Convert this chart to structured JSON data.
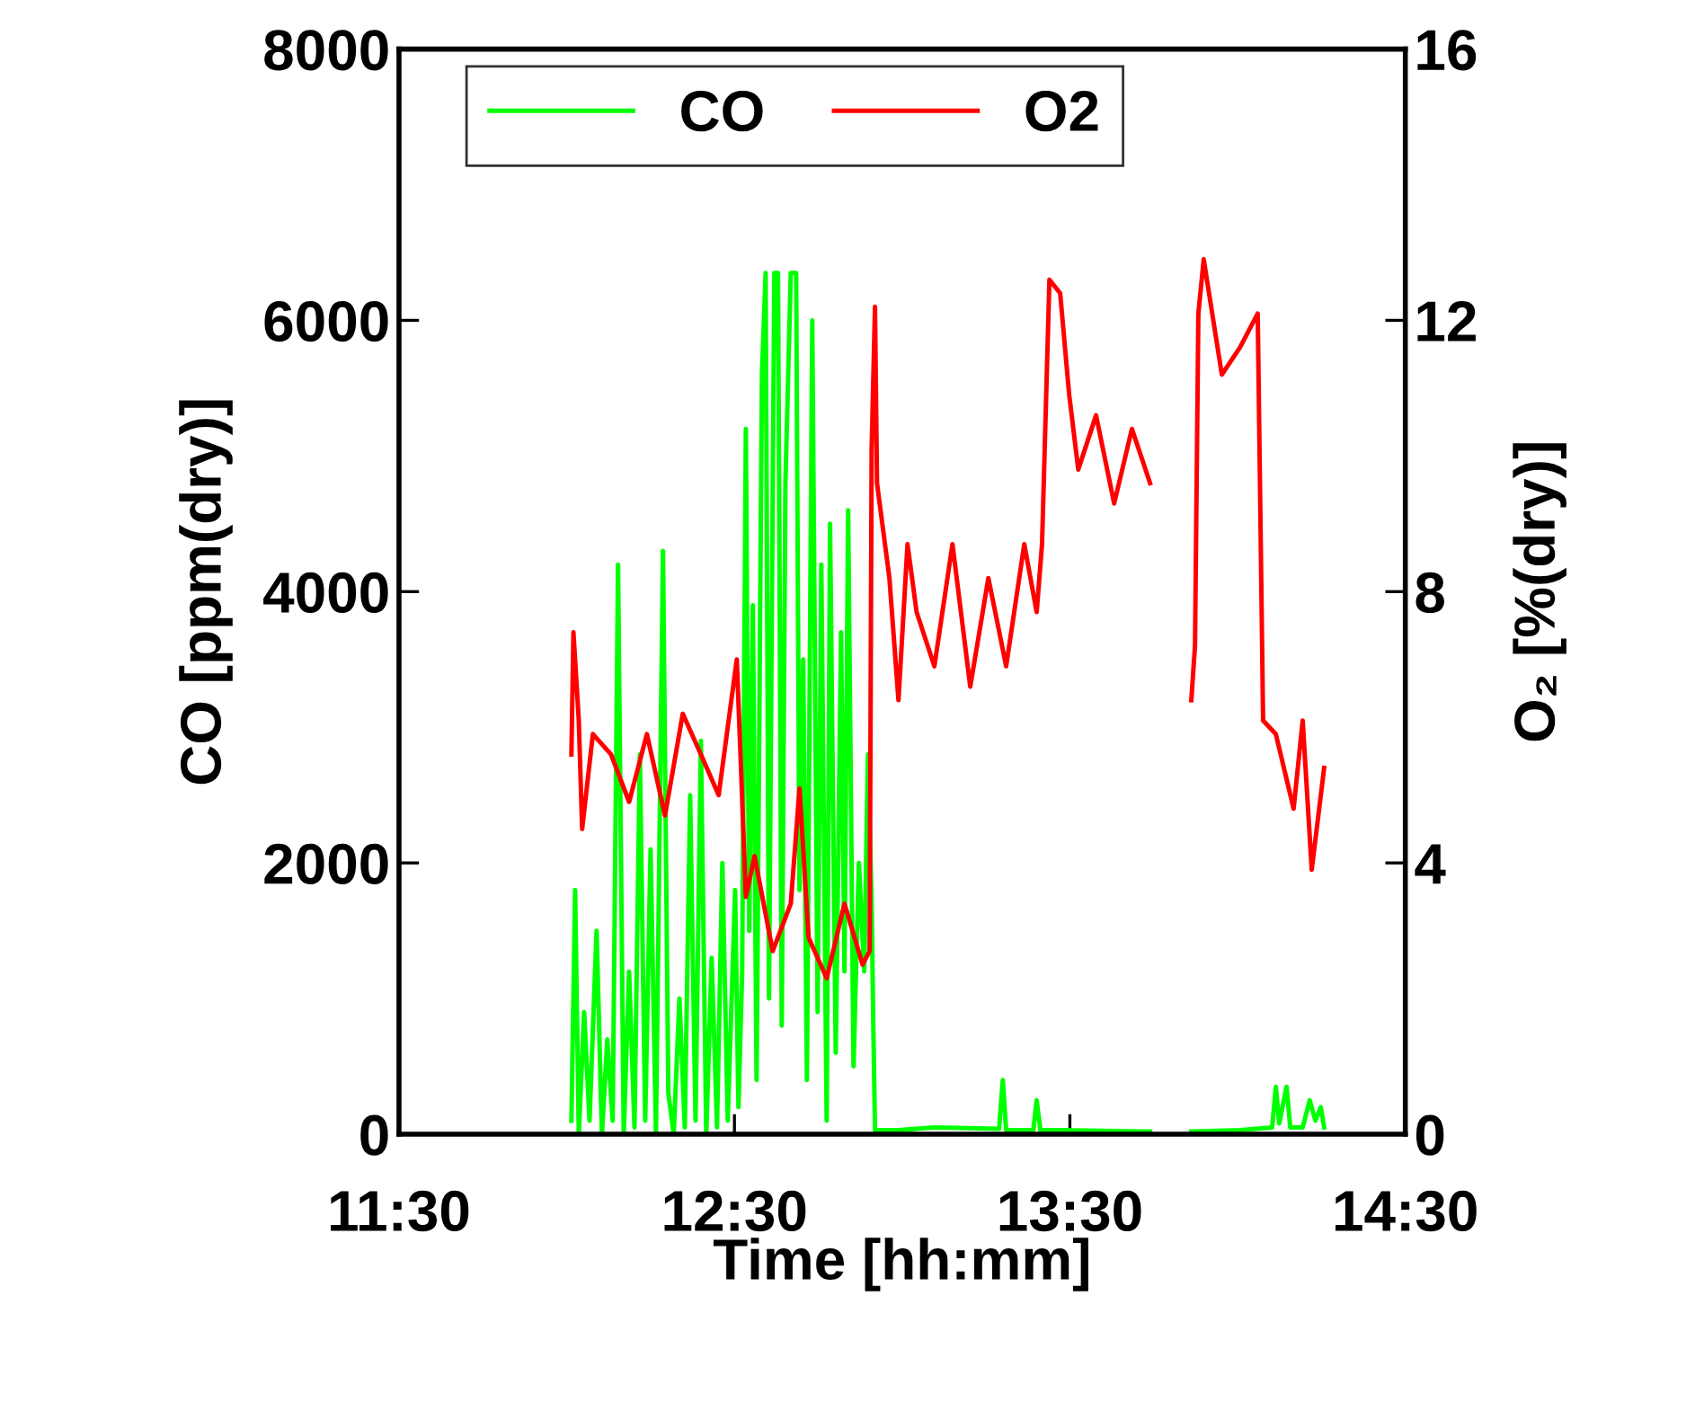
{
  "chart_data": {
    "type": "line",
    "xlabel": "Time [hh:mm]",
    "ylabel": "CO [ppm(dry)]",
    "y2label": "O₂ [%(dry)]",
    "xlim": [
      11.5,
      14.5
    ],
    "xticks": [
      {
        "value": 11.5,
        "label": "11:30"
      },
      {
        "value": 12.5,
        "label": "12:30"
      },
      {
        "value": 13.5,
        "label": "13:30"
      },
      {
        "value": 14.5,
        "label": "14:30"
      }
    ],
    "ylim": [
      0,
      8000
    ],
    "yticks": [
      0,
      2000,
      4000,
      6000,
      8000
    ],
    "y2lim": [
      0,
      16
    ],
    "y2ticks": [
      0,
      4,
      8,
      12,
      16
    ],
    "grid": false,
    "legend": "top",
    "line_style": "solid",
    "marker": "none",
    "series": [
      {
        "name": "CO",
        "color": "#00ff00",
        "x": [
          12.014,
          12.025,
          12.036,
          12.052,
          12.068,
          12.089,
          12.105,
          12.121,
          12.137,
          12.153,
          12.17,
          12.186,
          12.202,
          12.218,
          12.234,
          12.25,
          12.266,
          12.287,
          12.303,
          12.319,
          12.336,
          12.352,
          12.368,
          12.384,
          12.4,
          12.416,
          12.432,
          12.448,
          12.464,
          12.48,
          12.502,
          12.512,
          12.523,
          12.534,
          12.544,
          12.555,
          12.566,
          12.582,
          12.593,
          12.603,
          12.619,
          12.63,
          12.641,
          12.652,
          12.668,
          12.684,
          12.694,
          12.705,
          12.716,
          12.732,
          12.748,
          12.759,
          12.775,
          12.785,
          12.802,
          12.818,
          12.828,
          12.839,
          12.855,
          12.871,
          12.887,
          12.898,
          12.909,
          12.914,
          12.919,
          12.989,
          13.096,
          13.289,
          13.3,
          13.31,
          13.391,
          13.401,
          13.412,
          13.471,
          13.739,
          13.75,
          13.862,
          14.007,
          14.103,
          14.114,
          14.124,
          14.146,
          14.157,
          14.194,
          14.215,
          14.232,
          14.248,
          14.258
        ],
        "values": [
          100,
          1800,
          0,
          900,
          100,
          1500,
          0,
          700,
          100,
          4200,
          0,
          1200,
          50,
          2800,
          100,
          2100,
          0,
          4300,
          300,
          0,
          1000,
          50,
          2500,
          100,
          2900,
          0,
          1300,
          50,
          2000,
          100,
          1800,
          200,
          1200,
          5200,
          1500,
          3900,
          400,
          5600,
          6350,
          1000,
          6350,
          6350,
          800,
          4800,
          6350,
          6350,
          1800,
          3500,
          400,
          6000,
          900,
          4200,
          100,
          4500,
          600,
          3700,
          1200,
          4600,
          500,
          2000,
          1200,
          2800,
          1700,
          800,
          30,
          30,
          50,
          40,
          400,
          30,
          30,
          250,
          30,
          30,
          20,
          null,
          20,
          30,
          50,
          350,
          80,
          350,
          50,
          50,
          250,
          100,
          200,
          50
        ]
      },
      {
        "name": "O2",
        "color": "#ff0000",
        "axis": "y2",
        "x": [
          12.014,
          12.02,
          12.036,
          12.046,
          12.078,
          12.132,
          12.186,
          12.239,
          12.293,
          12.346,
          12.4,
          12.453,
          12.507,
          12.518,
          12.534,
          12.56,
          12.614,
          12.668,
          12.694,
          12.721,
          12.775,
          12.828,
          12.882,
          12.903,
          12.909,
          12.919,
          12.925,
          12.962,
          12.989,
          13.016,
          13.043,
          13.096,
          13.15,
          13.203,
          13.257,
          13.31,
          13.364,
          13.401,
          13.417,
          13.439,
          13.471,
          13.498,
          13.525,
          13.578,
          13.632,
          13.685,
          13.739,
          13.75,
          13.862,
          13.873,
          13.883,
          13.899,
          13.953,
          14.007,
          14.06,
          14.076,
          14.114,
          14.167,
          14.194,
          14.221,
          14.258
        ],
        "values": [
          5.6,
          7.4,
          6.1,
          4.5,
          5.9,
          5.6,
          4.9,
          5.9,
          4.7,
          6.2,
          5.6,
          5.0,
          7.0,
          5.6,
          3.5,
          4.1,
          2.7,
          3.4,
          5.1,
          2.9,
          2.3,
          3.4,
          2.5,
          2.7,
          10.1,
          12.2,
          9.6,
          8.2,
          6.4,
          8.7,
          7.7,
          6.9,
          8.7,
          6.6,
          8.2,
          6.9,
          8.7,
          7.7,
          8.7,
          12.6,
          12.4,
          10.9,
          9.8,
          10.6,
          9.3,
          10.4,
          9.6,
          null,
          6.4,
          7.2,
          12.1,
          12.9,
          11.2,
          11.6,
          12.1,
          6.1,
          5.9,
          4.8,
          6.1,
          3.9,
          5.4
        ]
      }
    ]
  }
}
